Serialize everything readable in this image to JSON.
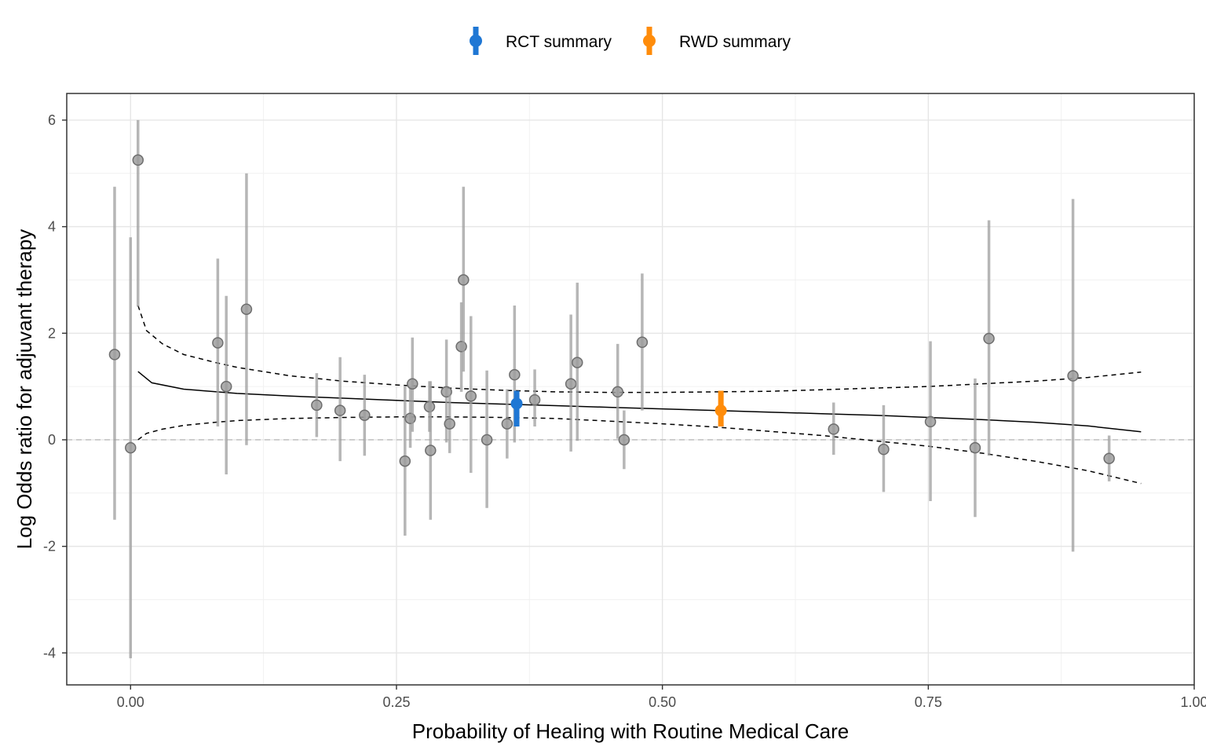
{
  "chart_data": {
    "type": "scatter",
    "title": "",
    "xlabel": "Probability of Healing with Routine Medical Care",
    "ylabel": "Log Odds ratio for adjuvant therapy",
    "xlim": [
      -0.06,
      1.0
    ],
    "ylim": [
      -4.6,
      6.5
    ],
    "x_ticks": [
      0.0,
      0.25,
      0.5,
      0.75,
      1.0
    ],
    "x_tick_labels": [
      "0.00",
      "0.25",
      "0.50",
      "0.75",
      "1.00"
    ],
    "y_ticks": [
      -4,
      -2,
      0,
      2,
      4,
      6
    ],
    "y_tick_labels": [
      "-4",
      "-2",
      "0",
      "2",
      "4",
      "6"
    ],
    "grid": true,
    "reference_line": {
      "y": 0,
      "style": "dashed",
      "color": "#bdbdbd"
    },
    "legend": {
      "position": "top",
      "entries": [
        {
          "label": "RCT summary",
          "color": "#1f77d4"
        },
        {
          "label": "RWD summary",
          "color": "#ff8c0a"
        }
      ]
    },
    "studies": {
      "color": "#9e9e9e",
      "points": [
        {
          "x": -0.015,
          "y": 1.6,
          "lo": -1.5,
          "hi": 4.75
        },
        {
          "x": 0.0,
          "y": -0.15,
          "lo": -4.1,
          "hi": 3.8
        },
        {
          "x": 0.007,
          "y": 5.25,
          "lo": 2.5,
          "hi": 6.0
        },
        {
          "x": 0.082,
          "y": 1.82,
          "lo": 0.25,
          "hi": 3.4
        },
        {
          "x": 0.09,
          "y": 1.0,
          "lo": -0.65,
          "hi": 2.7
        },
        {
          "x": 0.109,
          "y": 2.45,
          "lo": -0.1,
          "hi": 5.0
        },
        {
          "x": 0.175,
          "y": 0.65,
          "lo": 0.05,
          "hi": 1.25
        },
        {
          "x": 0.197,
          "y": 0.55,
          "lo": -0.4,
          "hi": 1.55
        },
        {
          "x": 0.22,
          "y": 0.46,
          "lo": -0.3,
          "hi": 1.22
        },
        {
          "x": 0.258,
          "y": -0.4,
          "lo": -1.8,
          "hi": 1.0
        },
        {
          "x": 0.263,
          "y": 0.4,
          "lo": -0.15,
          "hi": 1.0
        },
        {
          "x": 0.265,
          "y": 1.05,
          "lo": 0.15,
          "hi": 1.92
        },
        {
          "x": 0.281,
          "y": 0.62,
          "lo": 0.15,
          "hi": 1.1
        },
        {
          "x": 0.282,
          "y": -0.2,
          "lo": -1.5,
          "hi": 1.1
        },
        {
          "x": 0.297,
          "y": 0.9,
          "lo": -0.05,
          "hi": 1.88
        },
        {
          "x": 0.3,
          "y": 0.3,
          "lo": -0.25,
          "hi": 0.85
        },
        {
          "x": 0.311,
          "y": 1.75,
          "lo": 0.9,
          "hi": 2.58
        },
        {
          "x": 0.313,
          "y": 3.0,
          "lo": 1.28,
          "hi": 4.75
        },
        {
          "x": 0.32,
          "y": 0.82,
          "lo": -0.62,
          "hi": 2.32
        },
        {
          "x": 0.335,
          "y": 0.0,
          "lo": -1.28,
          "hi": 1.3
        },
        {
          "x": 0.354,
          "y": 0.3,
          "lo": -0.35,
          "hi": 0.95
        },
        {
          "x": 0.361,
          "y": 1.22,
          "lo": -0.05,
          "hi": 2.52
        },
        {
          "x": 0.38,
          "y": 0.75,
          "lo": 0.25,
          "hi": 1.32
        },
        {
          "x": 0.414,
          "y": 1.05,
          "lo": -0.22,
          "hi": 2.35
        },
        {
          "x": 0.42,
          "y": 1.45,
          "lo": -0.02,
          "hi": 2.95
        },
        {
          "x": 0.458,
          "y": 0.9,
          "lo": 0.02,
          "hi": 1.8
        },
        {
          "x": 0.464,
          "y": 0.0,
          "lo": -0.55,
          "hi": 0.55
        },
        {
          "x": 0.481,
          "y": 1.83,
          "lo": 0.55,
          "hi": 3.12
        },
        {
          "x": 0.661,
          "y": 0.2,
          "lo": -0.28,
          "hi": 0.7
        },
        {
          "x": 0.708,
          "y": -0.18,
          "lo": -0.98,
          "hi": 0.65
        },
        {
          "x": 0.752,
          "y": 0.34,
          "lo": -1.15,
          "hi": 1.85
        },
        {
          "x": 0.794,
          "y": -0.15,
          "lo": -1.45,
          "hi": 1.15
        },
        {
          "x": 0.807,
          "y": 1.9,
          "lo": -0.3,
          "hi": 4.12
        },
        {
          "x": 0.886,
          "y": 1.2,
          "lo": -2.1,
          "hi": 4.52
        },
        {
          "x": 0.92,
          "y": -0.35,
          "lo": -0.78,
          "hi": 0.08
        }
      ]
    },
    "summaries": [
      {
        "name": "RCT summary",
        "x": 0.363,
        "y": 0.68,
        "lo": 0.25,
        "hi": 0.92,
        "color": "#1f77d4"
      },
      {
        "name": "RWD summary",
        "x": 0.555,
        "y": 0.55,
        "lo": 0.25,
        "hi": 0.92,
        "color": "#ff8c0a"
      }
    ],
    "fit": {
      "x": [
        0.007,
        0.02,
        0.05,
        0.1,
        0.15,
        0.2,
        0.25,
        0.3,
        0.35,
        0.4,
        0.45,
        0.5,
        0.55,
        0.6,
        0.65,
        0.7,
        0.75,
        0.8,
        0.85,
        0.9,
        0.95
      ],
      "y": [
        1.28,
        1.07,
        0.95,
        0.87,
        0.82,
        0.78,
        0.74,
        0.7,
        0.67,
        0.64,
        0.61,
        0.58,
        0.55,
        0.52,
        0.49,
        0.46,
        0.42,
        0.38,
        0.33,
        0.26,
        0.15
      ]
    },
    "fit_upper": {
      "x": [
        0.007,
        0.015,
        0.03,
        0.05,
        0.08,
        0.1,
        0.15,
        0.2,
        0.25,
        0.3,
        0.35,
        0.4,
        0.45,
        0.5,
        0.55,
        0.6,
        0.65,
        0.7,
        0.75,
        0.8,
        0.85,
        0.9,
        0.95
      ],
      "y": [
        2.52,
        2.05,
        1.8,
        1.6,
        1.45,
        1.36,
        1.2,
        1.1,
        1.03,
        0.97,
        0.93,
        0.9,
        0.89,
        0.89,
        0.9,
        0.91,
        0.94,
        0.97,
        1.0,
        1.05,
        1.1,
        1.17,
        1.27
      ]
    },
    "fit_lower": {
      "x": [
        0.007,
        0.015,
        0.03,
        0.05,
        0.08,
        0.1,
        0.15,
        0.2,
        0.25,
        0.3,
        0.35,
        0.4,
        0.45,
        0.5,
        0.55,
        0.6,
        0.65,
        0.7,
        0.75,
        0.8,
        0.85,
        0.9,
        0.95
      ],
      "y": [
        0.0,
        0.12,
        0.2,
        0.27,
        0.33,
        0.36,
        0.4,
        0.42,
        0.43,
        0.43,
        0.42,
        0.4,
        0.35,
        0.3,
        0.24,
        0.16,
        0.08,
        -0.02,
        -0.12,
        -0.25,
        -0.4,
        -0.58,
        -0.82
      ]
    }
  }
}
